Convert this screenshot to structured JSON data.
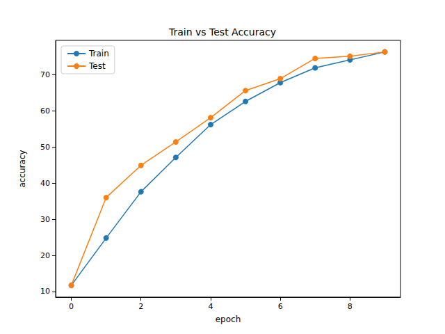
{
  "chart_data": {
    "type": "line",
    "title": "Train vs Test Accuracy",
    "x_label": "epoch",
    "y_label": "accuracy",
    "x": [
      0,
      1,
      2,
      3,
      4,
      5,
      6,
      7,
      8,
      9
    ],
    "series": [
      {
        "name": "Train",
        "color": "#1f77b4",
        "marker": "circle",
        "values": [
          11.7,
          24.8,
          37.6,
          47.1,
          56.2,
          62.6,
          67.8,
          71.9,
          74.1,
          76.3
        ]
      },
      {
        "name": "Test",
        "color": "#ff7f0e",
        "marker": "circle",
        "values": [
          11.7,
          36.0,
          44.9,
          51.4,
          58.1,
          65.6,
          68.9,
          74.5,
          75.1,
          76.3
        ]
      }
    ],
    "xlim": [
      -0.45,
      9.45
    ],
    "xticks": [
      0,
      2,
      4,
      6,
      8
    ],
    "ylim": [
      8.45,
      79.5
    ],
    "yticks": [
      10,
      20,
      30,
      40,
      50,
      60,
      70
    ],
    "grid": false,
    "legend": "upper left"
  }
}
